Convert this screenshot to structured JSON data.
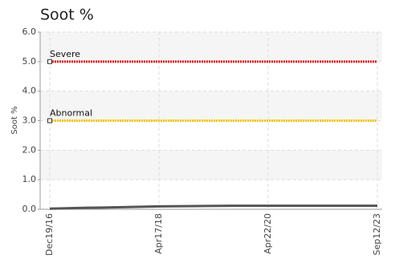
{
  "chart_data": {
    "type": "line",
    "title": "Soot %",
    "y_label": "Soot %",
    "categories": [
      "Dec19/16",
      null,
      null,
      "Apr17/18",
      null,
      null,
      "Apr22/20",
      null,
      null,
      "Sep12/23"
    ],
    "values": [
      0.02,
      0.05,
      0.07,
      0.1,
      0.11,
      0.12,
      0.12,
      0.12,
      0.12,
      0.12
    ],
    "color": "#555555",
    "ylim": [
      0,
      6
    ],
    "yticks": [
      {
        "value": 0,
        "label": "0.0"
      },
      {
        "value": 1,
        "label": "1.0"
      },
      {
        "value": 2,
        "label": "2.0"
      },
      {
        "value": 3,
        "label": "3.0"
      },
      {
        "value": 4,
        "label": "4.0"
      },
      {
        "value": 5,
        "label": "5.0"
      },
      {
        "value": 6,
        "label": "6.0"
      }
    ],
    "grid": true,
    "thresholds": [
      {
        "label": "Severe",
        "value": 5,
        "color": "#e8191b"
      },
      {
        "label": "Abnormal",
        "value": 3,
        "color": "#f2c500"
      }
    ]
  }
}
